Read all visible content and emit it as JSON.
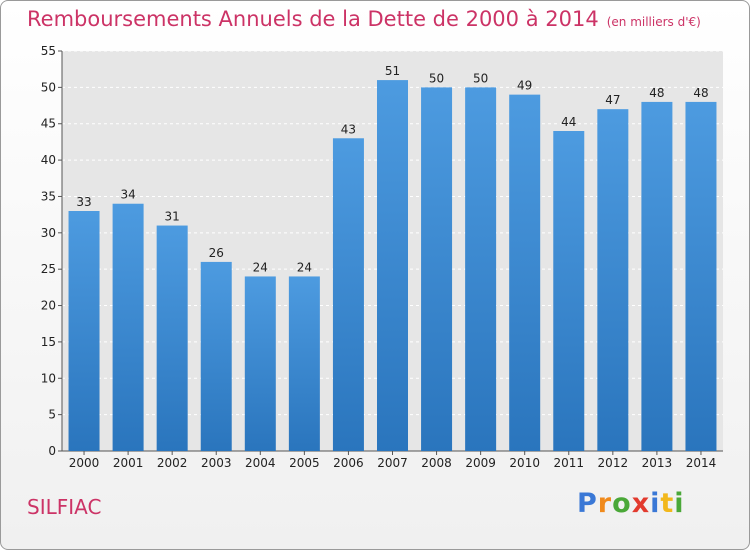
{
  "title": "Remboursements Annuels de la Dette de 2000 à 2014",
  "unit": "(en milliers d'€)",
  "city": "SILFIAC",
  "logo": [
    "P",
    "r",
    "o",
    "x",
    "i",
    "t",
    "i"
  ],
  "colors": {
    "bar": "#4d9be0",
    "bar_dark": "#2a75bd",
    "title": "#cc3366"
  },
  "chart_data": {
    "type": "bar",
    "title": "Remboursements Annuels de la Dette de 2000 à 2014",
    "xlabel": "",
    "ylabel": "",
    "categories": [
      "2000",
      "2001",
      "2002",
      "2003",
      "2004",
      "2005",
      "2006",
      "2007",
      "2008",
      "2009",
      "2010",
      "2011",
      "2012",
      "2013",
      "2014"
    ],
    "values": [
      33,
      34,
      31,
      26,
      24,
      24,
      43,
      51,
      50,
      50,
      49,
      44,
      47,
      48,
      48
    ],
    "ylim": [
      0,
      55
    ],
    "yticks": [
      0,
      5,
      10,
      15,
      20,
      25,
      30,
      35,
      40,
      45,
      50,
      55
    ],
    "grid": "horizontal",
    "legend": "none"
  }
}
